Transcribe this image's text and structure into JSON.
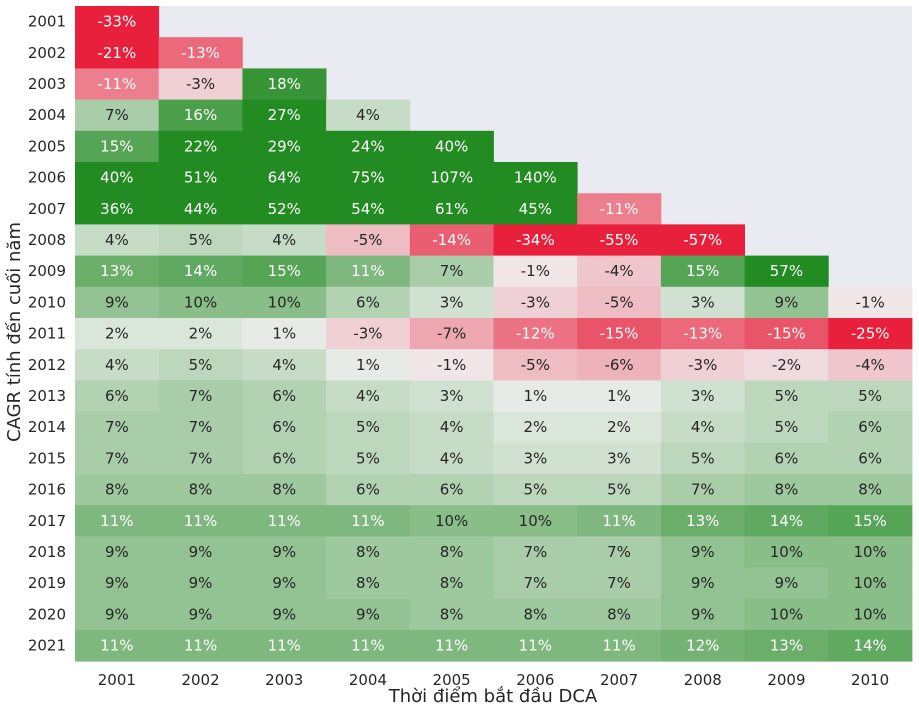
{
  "chart_data": {
    "type": "heatmap",
    "xlabel": "Thời điểm bắt đầu DCA",
    "ylabel": "CAGR tính đến cuối năm",
    "x_categories": [
      "2001",
      "2002",
      "2003",
      "2004",
      "2005",
      "2006",
      "2007",
      "2008",
      "2009",
      "2010"
    ],
    "y_categories": [
      "2001",
      "2002",
      "2003",
      "2004",
      "2005",
      "2006",
      "2007",
      "2008",
      "2009",
      "2010",
      "2011",
      "2012",
      "2013",
      "2014",
      "2015",
      "2016",
      "2017",
      "2018",
      "2019",
      "2020",
      "2021"
    ],
    "value_format": "percent",
    "values": [
      [
        -33,
        null,
        null,
        null,
        null,
        null,
        null,
        null,
        null,
        null
      ],
      [
        -21,
        -13,
        null,
        null,
        null,
        null,
        null,
        null,
        null,
        null
      ],
      [
        -11,
        -3,
        18,
        null,
        null,
        null,
        null,
        null,
        null,
        null
      ],
      [
        7,
        16,
        27,
        4,
        null,
        null,
        null,
        null,
        null,
        null
      ],
      [
        15,
        22,
        29,
        24,
        40,
        null,
        null,
        null,
        null,
        null
      ],
      [
        40,
        51,
        64,
        75,
        107,
        140,
        null,
        null,
        null,
        null
      ],
      [
        36,
        44,
        52,
        54,
        61,
        45,
        -11,
        null,
        null,
        null
      ],
      [
        4,
        5,
        4,
        -5,
        -14,
        -34,
        -55,
        -57,
        null,
        null
      ],
      [
        13,
        14,
        15,
        11,
        7,
        -1,
        -4,
        15,
        57,
        null
      ],
      [
        9,
        10,
        10,
        6,
        3,
        -3,
        -5,
        3,
        9,
        -1
      ],
      [
        2,
        2,
        1,
        -3,
        -7,
        -12,
        -15,
        -13,
        -15,
        -25
      ],
      [
        4,
        5,
        4,
        1,
        -1,
        -5,
        -6,
        -3,
        -2,
        -4
      ],
      [
        6,
        7,
        6,
        4,
        3,
        1,
        1,
        3,
        5,
        5
      ],
      [
        7,
        7,
        6,
        5,
        4,
        2,
        2,
        4,
        5,
        6
      ],
      [
        7,
        7,
        6,
        5,
        4,
        3,
        3,
        5,
        6,
        6
      ],
      [
        8,
        8,
        8,
        6,
        6,
        5,
        5,
        7,
        8,
        8
      ],
      [
        11,
        11,
        11,
        11,
        10,
        10,
        11,
        13,
        14,
        15
      ],
      [
        9,
        9,
        9,
        8,
        8,
        7,
        7,
        9,
        10,
        10
      ],
      [
        9,
        9,
        9,
        8,
        8,
        7,
        7,
        9,
        9,
        10
      ],
      [
        9,
        9,
        9,
        9,
        8,
        8,
        8,
        9,
        10,
        10
      ],
      [
        11,
        11,
        11,
        11,
        11,
        11,
        11,
        12,
        13,
        14
      ]
    ],
    "color_scale": {
      "min": -20,
      "center": 0,
      "max": 20,
      "negative_color": "#e8203c",
      "neutral_color": "#f0f0f0",
      "positive_color": "#228b22"
    },
    "background_color": "#eaeaf2",
    "grid": false,
    "colorbar": false
  }
}
